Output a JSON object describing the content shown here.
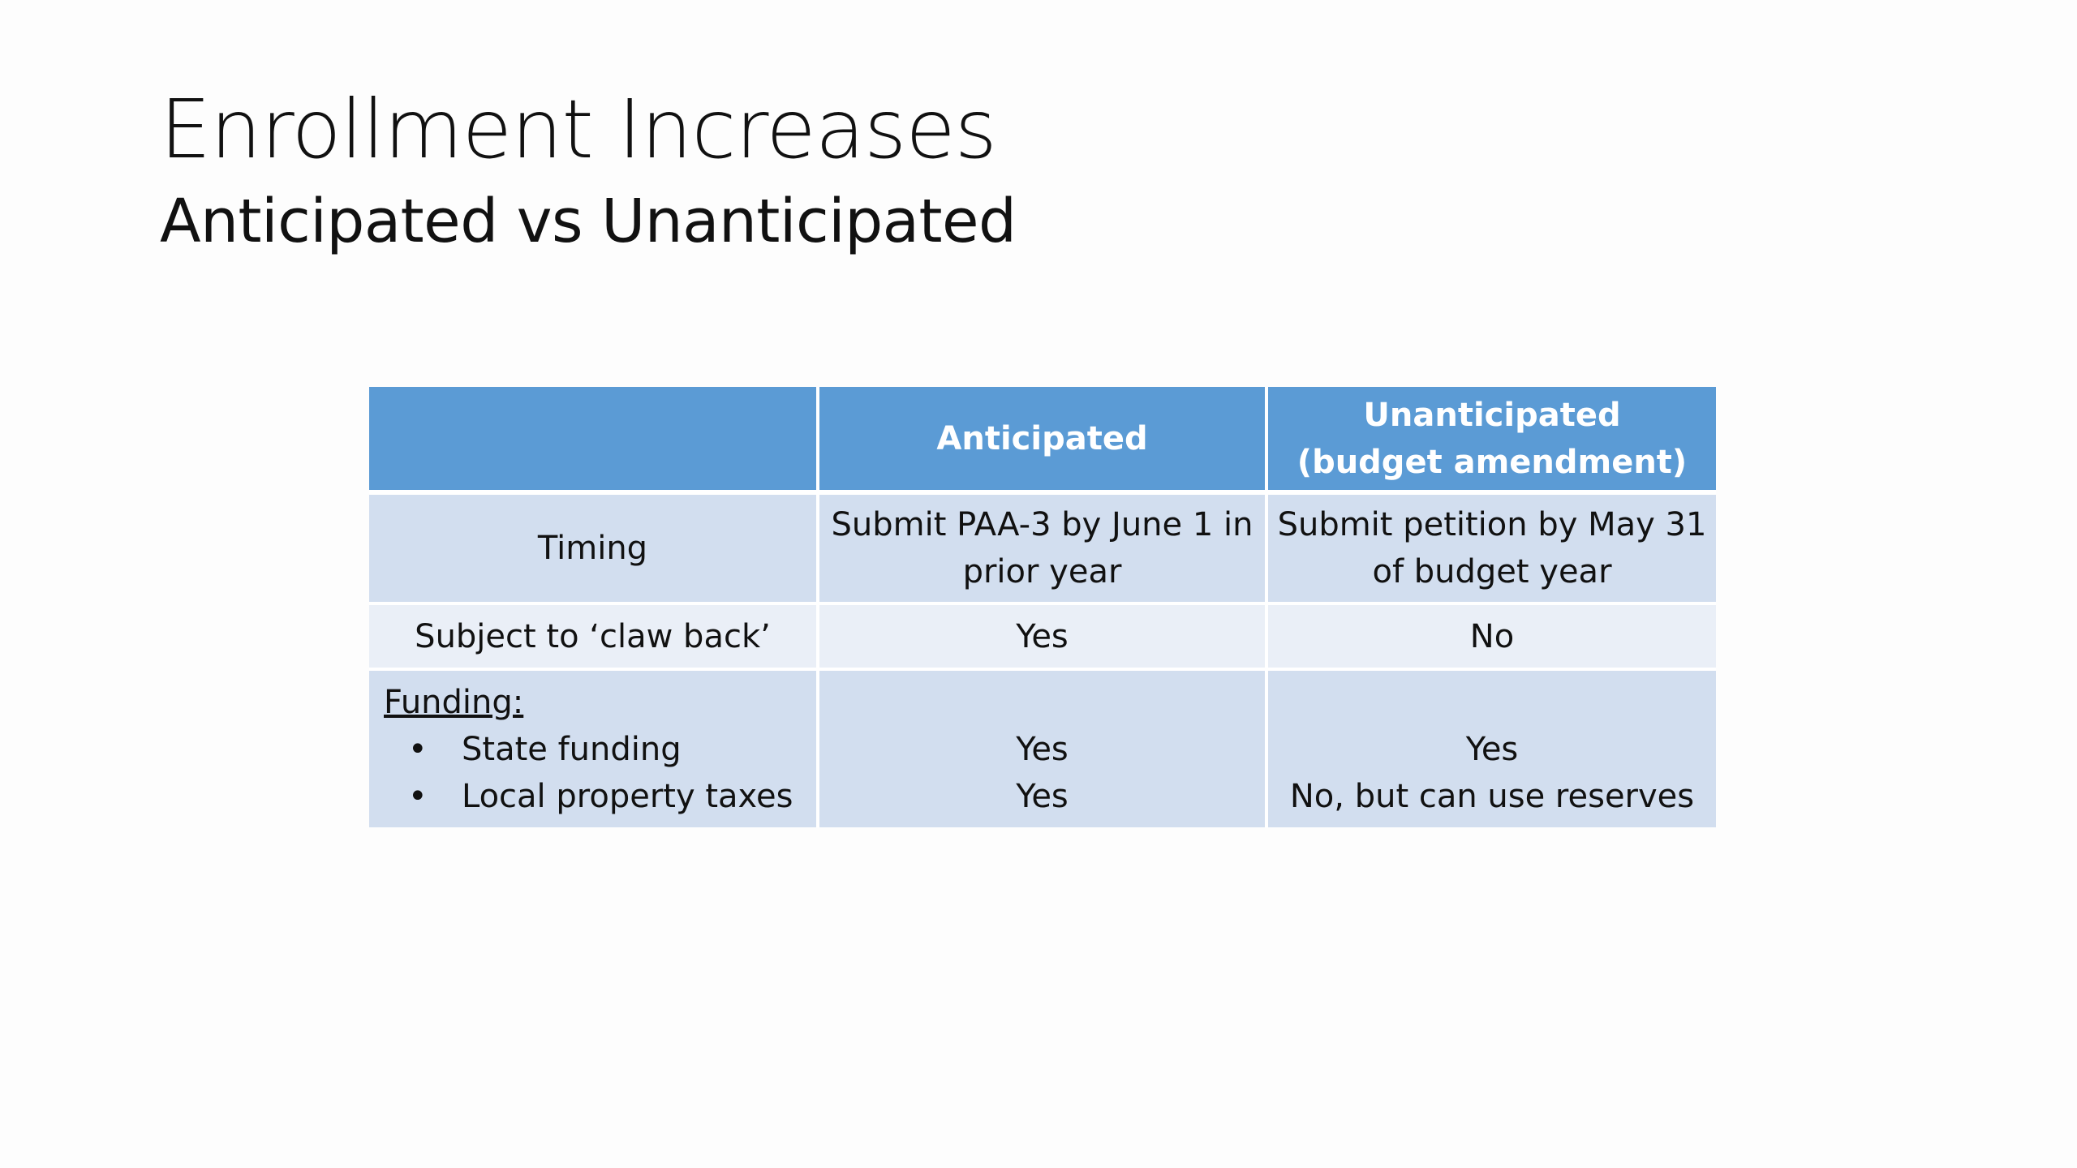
{
  "slide": {
    "title": "Enrollment Increases",
    "subtitle": "Anticipated vs Unanticipated"
  },
  "table": {
    "headers": [
      "",
      "Anticipated",
      "Unanticipated (budget amendment)"
    ],
    "header_unanticipated_line1": "Unanticipated",
    "header_unanticipated_line2": "(budget amendment)",
    "rows": {
      "timing": {
        "label": "Timing",
        "anticipated": "Submit PAA-3 by June 1 in prior year",
        "unanticipated": "Submit petition by May 31 of budget year"
      },
      "claw_back": {
        "label": "Subject to ‘claw back’",
        "anticipated": "Yes",
        "unanticipated": "No"
      },
      "funding": {
        "label": "Funding:",
        "bullet": "•",
        "items": [
          {
            "label": "State funding",
            "anticipated": "Yes",
            "unanticipated": "Yes"
          },
          {
            "label": "Local property taxes",
            "anticipated": "Yes",
            "unanticipated": "No, but can use reserves"
          }
        ]
      }
    }
  },
  "colors": {
    "header_bg": "#5b9bd5",
    "row_dark_bg": "#d2deef",
    "row_light_bg": "#eaeff7"
  }
}
